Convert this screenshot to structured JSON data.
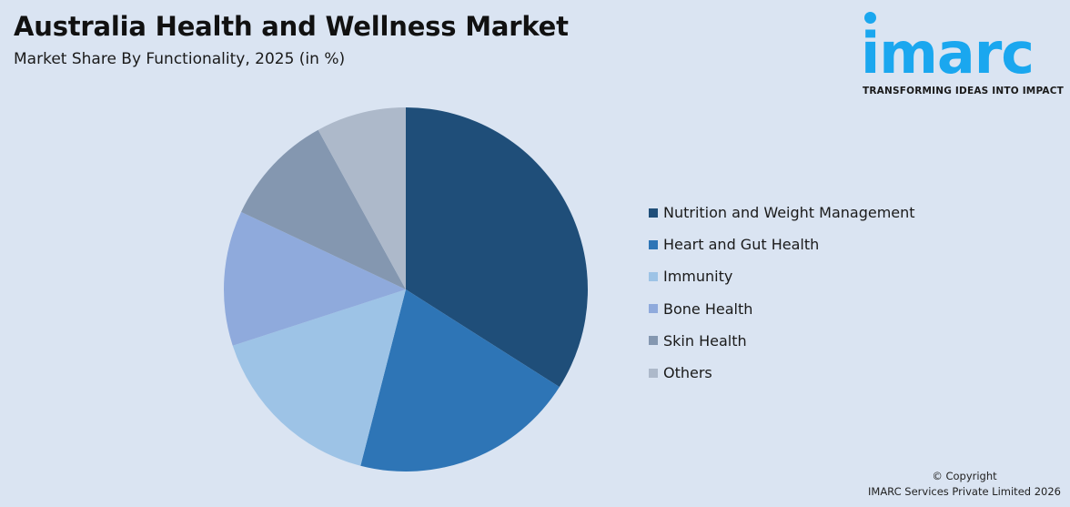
{
  "header": {
    "title": "Australia Health and Wellness Market",
    "subtitle": "Market Share By Functionality, 2025 (in %)"
  },
  "logo": {
    "word": "imarc",
    "tagline": "TRANSFORMING IDEAS INTO IMPACT",
    "color": "#1aa7ef"
  },
  "footer": {
    "copyright_line1": "© Copyright",
    "copyright_line2": "IMARC Services Private Limited 2026"
  },
  "chart_data": {
    "type": "pie",
    "title": "Australia Health and Wellness Market",
    "subtitle": "Market Share By Functionality, 2025 (in %)",
    "categories": [
      "Nutrition and Weight Management",
      "Heart and Gut Health",
      "Immunity",
      "Bone Health",
      "Skin Health",
      "Others"
    ],
    "values": [
      34,
      20,
      16,
      12,
      10,
      8
    ],
    "colors": [
      "#1f4e79",
      "#2e75b6",
      "#9dc3e6",
      "#8faadc",
      "#8497b0",
      "#adb9ca"
    ],
    "start_angle": "12 o'clock, clockwise",
    "legend_position": "right",
    "data_labels": false
  }
}
